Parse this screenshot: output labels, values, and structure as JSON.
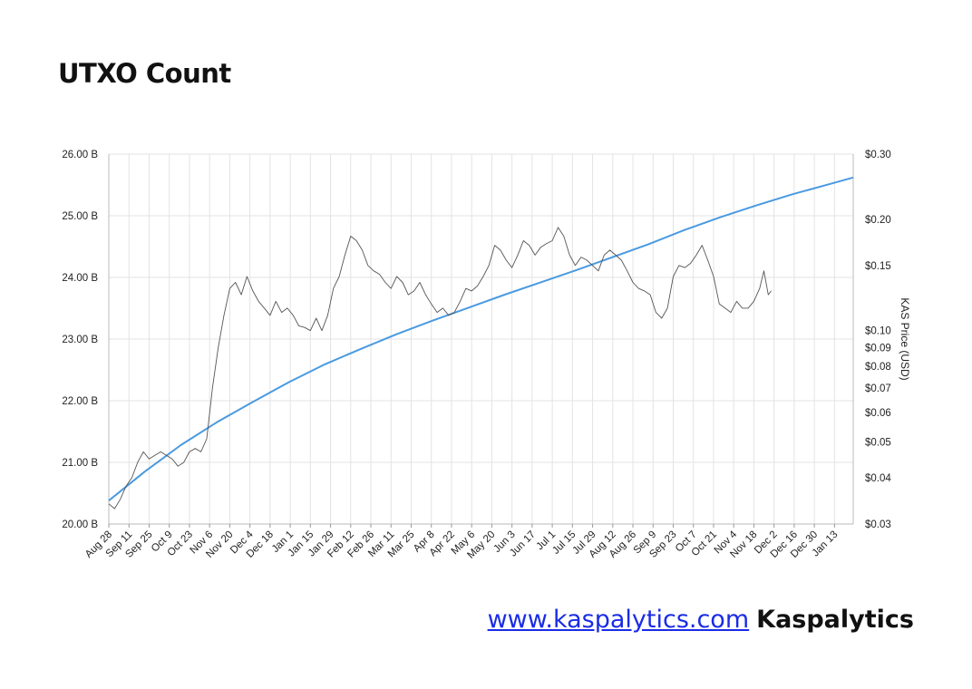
{
  "page": {
    "title": "UTXO Count",
    "footer": {
      "link_text": "www.kaspalytics.com",
      "brand": "Kaspalytics"
    }
  },
  "chart_data": {
    "type": "line",
    "title": "UTXO Count",
    "xlabel": "",
    "ylabel_left": "",
    "ylabel_right": "KAS Price (USD)",
    "grid": true,
    "legend": "none",
    "x_tick_labels": [
      "Aug 28",
      "Sep 11",
      "Sep 25",
      "Oct 9",
      "Oct 23",
      "Nov 6",
      "Nov 20",
      "Dec 4",
      "Dec 18",
      "Jan 1",
      "Jan 15",
      "Jan 29",
      "Feb 12",
      "Feb 26",
      "Mar 11",
      "Mar 25",
      "Apr 8",
      "Apr 22",
      "May 6",
      "May 20",
      "Jun 3",
      "Jun 17",
      "Jul 1",
      "Jul 15",
      "Jul 29",
      "Aug 12",
      "Aug 26",
      "Sep 9",
      "Sep 23",
      "Oct 7",
      "Oct 21",
      "Nov 4",
      "Nov 18",
      "Dec 2",
      "Dec 16",
      "Dec 30",
      "Jan 13"
    ],
    "x_range_days": [
      0,
      517
    ],
    "y_left": {
      "ticks": [
        20,
        21,
        22,
        23,
        24,
        25,
        26
      ],
      "tick_labels": [
        "20.00 B",
        "21.00 B",
        "22.00 B",
        "23.00 B",
        "24.00 B",
        "25.00 B",
        "26.00 B"
      ],
      "range": [
        20,
        26
      ],
      "unit": "billions"
    },
    "y_right": {
      "scale": "log",
      "ticks": [
        0.03,
        0.04,
        0.05,
        0.06,
        0.07,
        0.08,
        0.09,
        0.1,
        0.15,
        0.2,
        0.3
      ],
      "tick_labels": [
        "$0.03",
        "$0.04",
        "$0.05",
        "$0.06",
        "$0.07",
        "$0.08",
        "$0.09",
        "$0.10",
        "$0.15",
        "$0.20",
        "$0.30"
      ],
      "range": [
        0.03,
        0.3
      ]
    },
    "series": [
      {
        "axis": "left",
        "color": "#4a9ae0",
        "points": [
          [
            0,
            20.38
          ],
          [
            25,
            20.85
          ],
          [
            50,
            21.28
          ],
          [
            75,
            21.65
          ],
          [
            100,
            21.98
          ],
          [
            125,
            22.3
          ],
          [
            150,
            22.59
          ],
          [
            175,
            22.84
          ],
          [
            200,
            23.08
          ],
          [
            225,
            23.3
          ],
          [
            250,
            23.51
          ],
          [
            275,
            23.72
          ],
          [
            300,
            23.92
          ],
          [
            325,
            24.12
          ],
          [
            350,
            24.33
          ],
          [
            375,
            24.54
          ],
          [
            400,
            24.77
          ],
          [
            425,
            24.98
          ],
          [
            450,
            25.17
          ],
          [
            475,
            25.35
          ],
          [
            500,
            25.51
          ],
          [
            517,
            25.62
          ]
        ]
      },
      {
        "axis": "right",
        "color": "#555555",
        "points": [
          [
            0,
            0.034
          ],
          [
            4,
            0.033
          ],
          [
            8,
            0.035
          ],
          [
            12,
            0.038
          ],
          [
            16,
            0.04
          ],
          [
            20,
            0.044
          ],
          [
            24,
            0.047
          ],
          [
            28,
            0.045
          ],
          [
            32,
            0.046
          ],
          [
            36,
            0.047
          ],
          [
            40,
            0.046
          ],
          [
            44,
            0.045
          ],
          [
            48,
            0.043
          ],
          [
            52,
            0.044
          ],
          [
            56,
            0.047
          ],
          [
            60,
            0.048
          ],
          [
            64,
            0.047
          ],
          [
            68,
            0.051
          ],
          [
            72,
            0.07
          ],
          [
            76,
            0.09
          ],
          [
            80,
            0.11
          ],
          [
            84,
            0.13
          ],
          [
            88,
            0.135
          ],
          [
            92,
            0.125
          ],
          [
            96,
            0.14
          ],
          [
            100,
            0.128
          ],
          [
            104,
            0.12
          ],
          [
            108,
            0.115
          ],
          [
            112,
            0.11
          ],
          [
            116,
            0.12
          ],
          [
            120,
            0.112
          ],
          [
            124,
            0.115
          ],
          [
            128,
            0.11
          ],
          [
            132,
            0.103
          ],
          [
            136,
            0.102
          ],
          [
            140,
            0.1
          ],
          [
            144,
            0.108
          ],
          [
            148,
            0.1
          ],
          [
            152,
            0.11
          ],
          [
            156,
            0.13
          ],
          [
            160,
            0.14
          ],
          [
            164,
            0.16
          ],
          [
            168,
            0.18
          ],
          [
            172,
            0.175
          ],
          [
            176,
            0.165
          ],
          [
            180,
            0.15
          ],
          [
            184,
            0.145
          ],
          [
            188,
            0.142
          ],
          [
            192,
            0.135
          ],
          [
            196,
            0.13
          ],
          [
            200,
            0.14
          ],
          [
            204,
            0.135
          ],
          [
            208,
            0.125
          ],
          [
            212,
            0.128
          ],
          [
            216,
            0.135
          ],
          [
            220,
            0.125
          ],
          [
            224,
            0.118
          ],
          [
            228,
            0.112
          ],
          [
            232,
            0.115
          ],
          [
            236,
            0.11
          ],
          [
            240,
            0.112
          ],
          [
            244,
            0.12
          ],
          [
            248,
            0.13
          ],
          [
            252,
            0.128
          ],
          [
            256,
            0.132
          ],
          [
            260,
            0.14
          ],
          [
            264,
            0.15
          ],
          [
            268,
            0.17
          ],
          [
            272,
            0.165
          ],
          [
            276,
            0.155
          ],
          [
            280,
            0.148
          ],
          [
            284,
            0.16
          ],
          [
            288,
            0.175
          ],
          [
            292,
            0.17
          ],
          [
            296,
            0.16
          ],
          [
            300,
            0.168
          ],
          [
            304,
            0.172
          ],
          [
            308,
            0.175
          ],
          [
            312,
            0.19
          ],
          [
            316,
            0.18
          ],
          [
            320,
            0.16
          ],
          [
            324,
            0.15
          ],
          [
            328,
            0.158
          ],
          [
            332,
            0.155
          ],
          [
            336,
            0.15
          ],
          [
            340,
            0.145
          ],
          [
            344,
            0.16
          ],
          [
            348,
            0.165
          ],
          [
            352,
            0.16
          ],
          [
            356,
            0.155
          ],
          [
            360,
            0.145
          ],
          [
            364,
            0.135
          ],
          [
            368,
            0.13
          ],
          [
            372,
            0.128
          ],
          [
            376,
            0.125
          ],
          [
            380,
            0.112
          ],
          [
            384,
            0.108
          ],
          [
            388,
            0.115
          ],
          [
            392,
            0.14
          ],
          [
            396,
            0.15
          ],
          [
            400,
            0.148
          ],
          [
            404,
            0.152
          ],
          [
            408,
            0.16
          ],
          [
            412,
            0.17
          ],
          [
            416,
            0.155
          ],
          [
            420,
            0.14
          ],
          [
            424,
            0.118
          ],
          [
            428,
            0.115
          ],
          [
            432,
            0.112
          ],
          [
            436,
            0.12
          ],
          [
            440,
            0.115
          ],
          [
            444,
            0.115
          ],
          [
            448,
            0.12
          ],
          [
            452,
            0.13
          ],
          [
            455,
            0.145
          ],
          [
            458,
            0.125
          ],
          [
            460,
            0.128
          ]
        ]
      }
    ]
  }
}
